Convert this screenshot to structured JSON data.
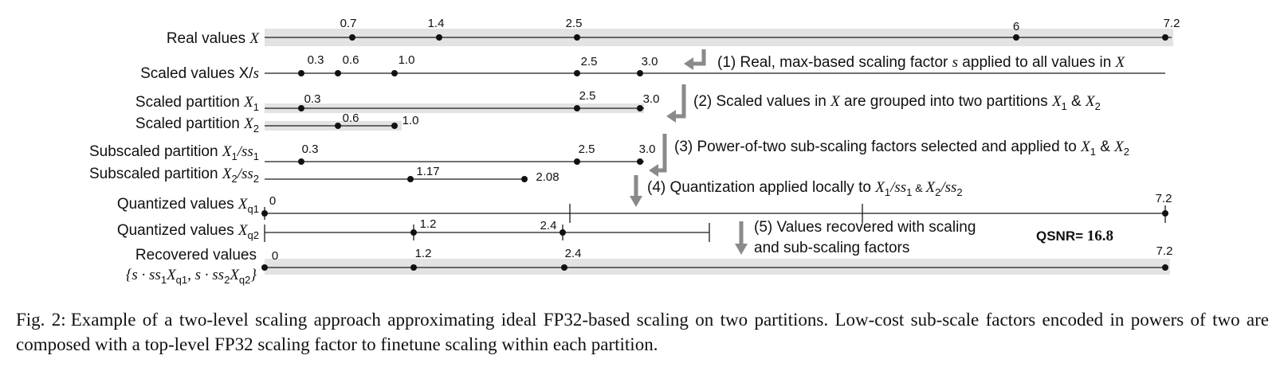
{
  "rows": [
    {
      "id": "real",
      "label": "Real values ",
      "math": "X",
      "ticks": [
        "0.7",
        "1.4",
        "2.5",
        "6",
        "7.2"
      ]
    },
    {
      "id": "scaled",
      "label": "Scaled values X/",
      "math": "s",
      "ticks": [
        "0.3",
        "0.6",
        "1.0",
        "2.5",
        "3.0"
      ]
    },
    {
      "id": "part1",
      "label": "Scaled partition ",
      "math": "X",
      "sub": "1",
      "ticks": [
        "0.3",
        "2.5",
        "3.0"
      ]
    },
    {
      "id": "part2",
      "label": "Scaled partition ",
      "math": "X",
      "sub": "2",
      "ticks": [
        "0.6",
        "1.0"
      ]
    },
    {
      "id": "subpart1",
      "label": "Subscaled partition ",
      "math": "X",
      "sub": "1",
      "tail": "/ss",
      "tailsub": "1",
      "ticks": [
        "0.3",
        "2.5",
        "3.0"
      ]
    },
    {
      "id": "subpart2",
      "label": "Subscaled partition ",
      "math": "X",
      "sub": "2",
      "tail": "/ss",
      "tailsub": "2",
      "ticks": [
        "1.17",
        "2.08"
      ]
    },
    {
      "id": "quant1",
      "label": "Quantized values ",
      "math": "X",
      "sub": "q1",
      "ticks": [
        "0",
        "7.2"
      ]
    },
    {
      "id": "quant2",
      "label": "Quantized values ",
      "math": "X",
      "sub": "q2",
      "ticks": [
        "1.2",
        "2.4"
      ]
    },
    {
      "id": "recovered",
      "label": "Recovered values",
      "label2": "{s · ss",
      "label2sub": "1",
      "label2b": "X",
      "label2bsub": "q1",
      "label2c": ", s · ss",
      "label2csub": "2",
      "label2d": "X",
      "label2dsub": "q2",
      "label2e": "}",
      "ticks": [
        "0",
        "1.2",
        "2.4",
        "7.2"
      ]
    }
  ],
  "steps": {
    "s1": {
      "text": "(1) Real, max-based scaling factor ",
      "m1": "s",
      "t2": " applied to all values in ",
      "m2": "X"
    },
    "s2": {
      "text": "(2) Scaled values in ",
      "m1": "X",
      "t2": " are grouped into two partitions ",
      "m2": "X",
      "m2sub": "1",
      "t3": " & ",
      "m3": "X",
      "m3sub": "2"
    },
    "s3": {
      "text": "(3) Power-of-two sub-scaling factors selected and applied to ",
      "m1": "X",
      "m1sub": "1",
      "t2": " & ",
      "m2": "X",
      "m2sub": "2"
    },
    "s4": {
      "text": "(4) Quantization applied locally to ",
      "m1": "X",
      "m1sub": "1",
      "t2": "/ss",
      "t2sub": "1",
      "t3": " & ",
      "m3": "X",
      "m3sub": "2",
      "t4": "/ss",
      "t4sub": "2"
    },
    "s5": {
      "line1": "(5) Values recovered with scaling",
      "line2": "and sub-scaling factors"
    }
  },
  "qsnr": {
    "label": "QSNR= ",
    "value": "16.8"
  },
  "caption": {
    "lead": "Fig. 2:",
    "text": "Example of a two-level scaling approach approximating ideal FP32-based scaling on two partitions. Low-cost sub-scale factors encoded in powers of two are composed with a top-level FP32 scaling factor to finetune scaling within each partition."
  },
  "colors": {
    "band": "#e3e3e3",
    "arrow": "#8a8a8a",
    "ink": "#111111"
  }
}
